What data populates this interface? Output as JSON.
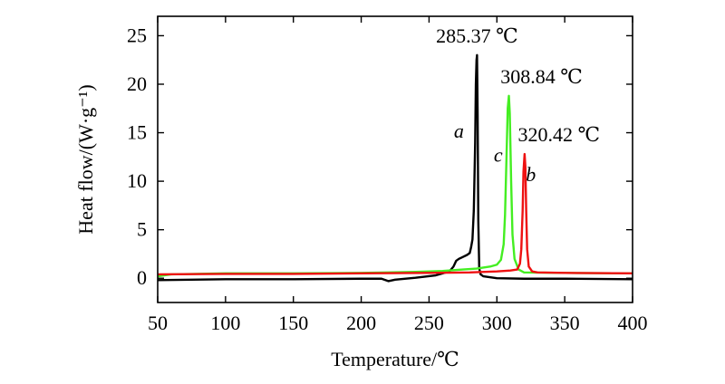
{
  "chart_data": {
    "type": "line",
    "xlabel": "Temperature/℃",
    "ylabel": "Heat flow/(W·g⁻¹)",
    "xlim": [
      50,
      400
    ],
    "ylim": [
      -2.5,
      27
    ],
    "xticks": [
      50,
      100,
      150,
      200,
      250,
      300,
      350,
      400
    ],
    "yticks": [
      0,
      5,
      10,
      15,
      20,
      25
    ],
    "grid": false,
    "series": [
      {
        "name": "a",
        "color": "#000000",
        "x": [
          50,
          100,
          150,
          200,
          215,
          220,
          225,
          240,
          255,
          265,
          268,
          270,
          272,
          275,
          278,
          280,
          281,
          282,
          283,
          284,
          284.5,
          285,
          285.37,
          285.8,
          286.3,
          287,
          288,
          290,
          300,
          320,
          350,
          400
        ],
        "y": [
          -0.2,
          -0.1,
          -0.1,
          -0.05,
          -0.05,
          -0.3,
          -0.15,
          0.05,
          0.3,
          0.7,
          1.2,
          1.8,
          2.0,
          2.2,
          2.4,
          2.6,
          3.2,
          4.0,
          7.0,
          14.0,
          20.0,
          22.5,
          23.0,
          17.0,
          6.0,
          1.0,
          0.4,
          0.2,
          0.0,
          -0.05,
          -0.05,
          -0.1
        ]
      },
      {
        "name": "c",
        "color": "#44ee22",
        "x": [
          50,
          60,
          100,
          150,
          200,
          220,
          240,
          260,
          275,
          285,
          290,
          295,
          300,
          303,
          305,
          306,
          307,
          308,
          308.84,
          309.5,
          310.5,
          311.5,
          313,
          316,
          320,
          350,
          400
        ],
        "y": [
          0.2,
          0.4,
          0.5,
          0.5,
          0.55,
          0.6,
          0.65,
          0.75,
          0.9,
          1.0,
          1.1,
          1.2,
          1.4,
          1.9,
          3.5,
          6.5,
          12.0,
          17.5,
          18.8,
          17.0,
          10.0,
          4.5,
          2.0,
          0.9,
          0.6,
          0.55,
          0.5
        ]
      },
      {
        "name": "b",
        "color": "#ee1111",
        "x": [
          50,
          100,
          150,
          200,
          250,
          280,
          300,
          310,
          315,
          317,
          318,
          319,
          319.6,
          320.42,
          321,
          321.6,
          322.3,
          323.5,
          326,
          330,
          350,
          400
        ],
        "y": [
          0.4,
          0.45,
          0.45,
          0.5,
          0.55,
          0.6,
          0.7,
          0.8,
          0.9,
          1.5,
          3.0,
          7.0,
          11.0,
          12.8,
          11.5,
          7.0,
          3.0,
          1.2,
          0.7,
          0.6,
          0.55,
          0.5
        ]
      }
    ],
    "annotations": [
      {
        "text": "285.37 ℃",
        "x": 285.37,
        "y": 23.0
      },
      {
        "text": "308.84 ℃",
        "x": 308.84,
        "y": 18.8
      },
      {
        "text": "320.42 ℃",
        "x": 320.42,
        "y": 12.8
      }
    ],
    "series_labels": [
      {
        "text": "a",
        "x": 272,
        "y": 14.5
      },
      {
        "text": "c",
        "x": 301,
        "y": 12.0
      },
      {
        "text": "b",
        "x": 325,
        "y": 10.0
      }
    ]
  }
}
